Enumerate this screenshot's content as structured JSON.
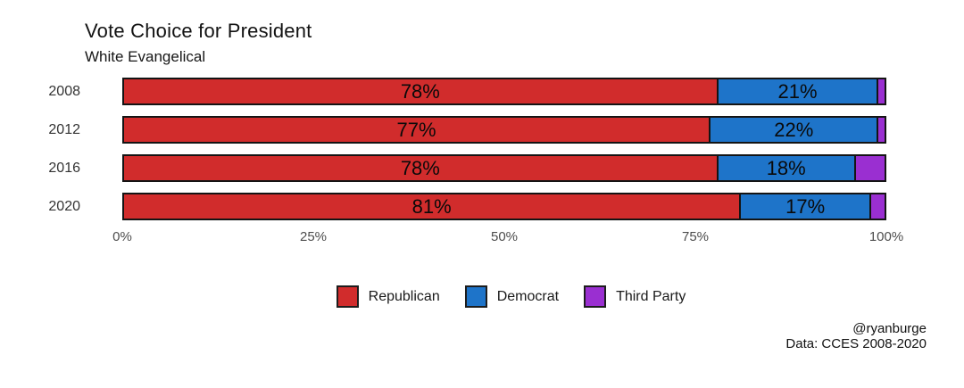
{
  "chart_data": {
    "type": "bar",
    "orientation": "horizontal-stacked",
    "title": "Vote Choice for President",
    "subtitle": "White Evangelical",
    "categories": [
      "2008",
      "2012",
      "2016",
      "2020"
    ],
    "series": [
      {
        "name": "Republican",
        "color": "#d12c2c",
        "values": [
          78,
          77,
          78,
          81
        ],
        "labels": [
          "78%",
          "77%",
          "78%",
          "81%"
        ]
      },
      {
        "name": "Democrat",
        "color": "#1e74c9",
        "values": [
          21,
          22,
          18,
          17
        ],
        "labels": [
          "21%",
          "22%",
          "18%",
          "17%"
        ]
      },
      {
        "name": "Third Party",
        "color": "#9a2fd1",
        "values": [
          1,
          1,
          4,
          2
        ],
        "labels": [
          "",
          "",
          "",
          ""
        ]
      }
    ],
    "xlim": [
      0,
      100
    ],
    "x_ticks": [
      "0%",
      "25%",
      "50%",
      "75%",
      "100%"
    ],
    "legend_position": "bottom",
    "grid": false,
    "bar_border_color": "#141414",
    "bar_label_color": "#0a0a0a"
  },
  "legend": {
    "items": [
      {
        "label": "Republican",
        "color": "#d12c2c"
      },
      {
        "label": "Democrat",
        "color": "#1e74c9"
      },
      {
        "label": "Third Party",
        "color": "#9a2fd1"
      }
    ]
  },
  "attribution": {
    "handle": "@ryanburge",
    "source": "Data: CCES 2008-2020"
  }
}
